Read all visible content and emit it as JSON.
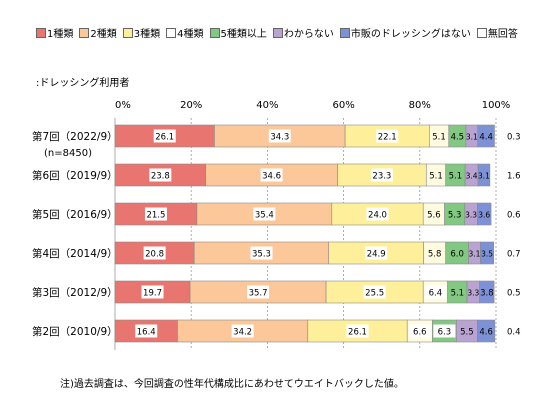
{
  "legend": [
    {
      "label": "1種類",
      "color": "#e8756f"
    },
    {
      "label": "2種類",
      "color": "#fcc799"
    },
    {
      "label": "3種類",
      "color": "#fef09a"
    },
    {
      "label": "4種類",
      "color": "#ffffff"
    },
    {
      "label": "5種類以上",
      "color": "#82c782"
    },
    {
      "label": "わからない",
      "color": "#b9a3d1"
    },
    {
      "label": "市販のドレッシングはない",
      "color": "#7d92d6"
    },
    {
      "label": "無回答",
      "color": "#ffffff"
    }
  ],
  "subtitle": ":ドレッシング利用者",
  "footnote": "注)過去調査は、今回調査の性年代構成比にあわせてウエイトバックした値。",
  "chart_data": {
    "type": "bar",
    "orientation": "horizontal",
    "stacked": true,
    "xlim": [
      0,
      100
    ],
    "x_ticks": [
      "0%",
      "20%",
      "40%",
      "60%",
      "80%",
      "100%"
    ],
    "categories": [
      "第7回（2022/9）",
      "第6回（2019/9）",
      "第5回（2016/9）",
      "第4回（2014/9）",
      "第3回（2012/9）",
      "第2回（2010/9）"
    ],
    "sublabel": "(n=8450)",
    "series": [
      {
        "name": "1種類",
        "color": "#e8756f",
        "values": [
          26.1,
          23.8,
          21.5,
          20.8,
          19.7,
          16.4
        ]
      },
      {
        "name": "2種類",
        "color": "#fcc799",
        "values": [
          34.3,
          34.6,
          35.4,
          35.3,
          35.7,
          34.2
        ]
      },
      {
        "name": "3種類",
        "color": "#fef09a",
        "values": [
          22.1,
          23.3,
          24.0,
          24.9,
          25.5,
          26.1
        ]
      },
      {
        "name": "4種類",
        "color": "#fffbe0",
        "values": [
          5.1,
          5.1,
          5.6,
          5.8,
          6.4,
          6.6
        ]
      },
      {
        "name": "5種類以上",
        "color": "#82c782",
        "values": [
          4.5,
          5.1,
          5.3,
          6.0,
          5.1,
          6.3
        ]
      },
      {
        "name": "わからない",
        "color": "#b9a3d1",
        "values": [
          3.1,
          3.4,
          3.3,
          3.1,
          3.3,
          5.5
        ]
      },
      {
        "name": "市販のドレッシングはない",
        "color": "#7d92d6",
        "values": [
          4.4,
          3.1,
          3.6,
          3.5,
          3.8,
          4.6
        ]
      },
      {
        "name": "無回答",
        "color": "#ffffff",
        "values": [
          0.3,
          1.6,
          0.6,
          0.7,
          0.5,
          0.4
        ]
      }
    ],
    "value_labels": [
      [
        "26.1",
        "34.3",
        "22.1",
        "5.1",
        "4.5",
        "3.1",
        "4.4",
        "0.3"
      ],
      [
        "23.8",
        "34.6",
        "23.3",
        "5.1",
        "5.1",
        "3.4",
        "3.1",
        "1.6"
      ],
      [
        "21.5",
        "35.4",
        "24.0",
        "5.6",
        "5.3",
        "3.3",
        "3.6",
        "0.6"
      ],
      [
        "20.8",
        "35.3",
        "24.9",
        "5.8",
        "6.0",
        "3.1",
        "3.5",
        "0.7"
      ],
      [
        "19.7",
        "35.7",
        "25.5",
        "6.4",
        "5.1",
        "3.3",
        "3.8",
        "0.5"
      ],
      [
        "16.4",
        "34.2",
        "26.1",
        "6.6",
        "6.3",
        "5.5",
        "4.6",
        "0.4"
      ]
    ],
    "legend_position": "top"
  }
}
